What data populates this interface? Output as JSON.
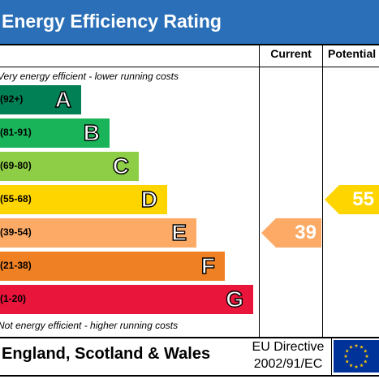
{
  "header": {
    "title": "Energy Efficiency Rating"
  },
  "columns": {
    "current_label": "Current",
    "potential_label": "Potential"
  },
  "notes": {
    "top": "Very energy efficient - lower running costs",
    "bottom": "Not energy efficient - higher running costs"
  },
  "bands": [
    {
      "letter": "A",
      "range": "(92+)",
      "color": "#008054"
    },
    {
      "letter": "B",
      "range": "(81-91)",
      "color": "#19b459"
    },
    {
      "letter": "C",
      "range": "(69-80)",
      "color": "#8dce46"
    },
    {
      "letter": "D",
      "range": "(55-68)",
      "color": "#ffd500"
    },
    {
      "letter": "E",
      "range": "(39-54)",
      "color": "#fcaa65"
    },
    {
      "letter": "F",
      "range": "(21-38)",
      "color": "#ef8023"
    },
    {
      "letter": "G",
      "range": "(1-20)",
      "color": "#e9153b"
    }
  ],
  "ratings": {
    "current": {
      "value": "39",
      "band": "E",
      "color": "#fcaa65"
    },
    "potential": {
      "value": "55",
      "band": "D",
      "color": "#ffd500"
    }
  },
  "footer": {
    "country": "England, Scotland & Wales",
    "directive_line1": "EU Directive",
    "directive_line2": "2002/91/EC",
    "flag_color": "#003399",
    "star_color": "#ffcc00"
  }
}
